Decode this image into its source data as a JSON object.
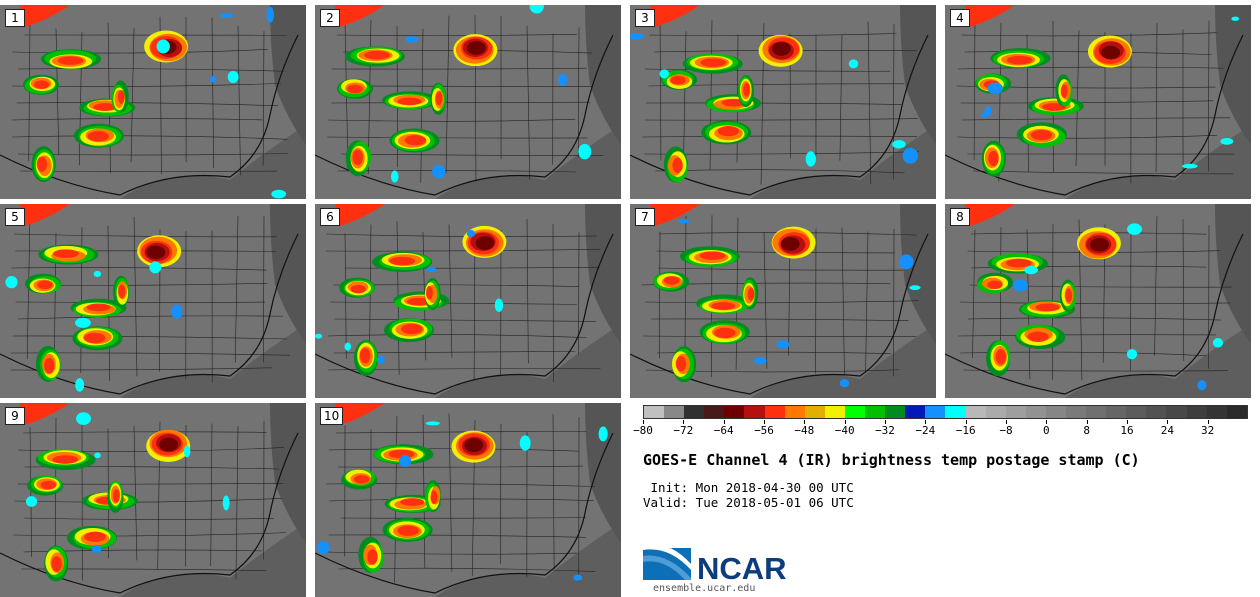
{
  "panels": [
    {
      "number": "1"
    },
    {
      "number": "2"
    },
    {
      "number": "3"
    },
    {
      "number": "4"
    },
    {
      "number": "5"
    },
    {
      "number": "6"
    },
    {
      "number": "7"
    },
    {
      "number": "8"
    },
    {
      "number": "9"
    },
    {
      "number": "10"
    }
  ],
  "colorbar": {
    "colors": [
      "#c0c0c0",
      "#888888",
      "#303030",
      "#4a1a1a",
      "#6e0000",
      "#b41010",
      "#ff3010",
      "#ff7800",
      "#e0b000",
      "#f0f000",
      "#00ff00",
      "#00c000",
      "#008c20",
      "#0018b8",
      "#1490ff",
      "#00ffff",
      "#b8b8b8",
      "#aaaaaa",
      "#9e9e9e",
      "#929292",
      "#868686",
      "#7a7a7a",
      "#707070",
      "#666666",
      "#5c5c5c",
      "#525252",
      "#484848",
      "#3e3e3e",
      "#343434",
      "#2a2a2a"
    ],
    "tick_labels": [
      "−80",
      "−72",
      "−64",
      "−56",
      "−48",
      "−40",
      "−32",
      "−24",
      "−16",
      "−8",
      "0",
      "8",
      "16",
      "24",
      "32"
    ]
  },
  "title": "GOES-E Channel 4 (IR) brightness temp postage stamp (C)",
  "init_line": " Init: Mon 2018-04-30 00 UTC",
  "valid_line": "Valid: Tue 2018-05-01 06 UTC",
  "logo": {
    "text": "NCAR",
    "brand_color": "#0d6fb8"
  },
  "website": "ensemble.ucar.edu"
}
